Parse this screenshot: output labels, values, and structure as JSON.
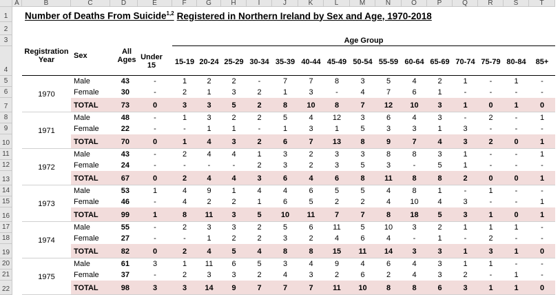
{
  "title": {
    "main": "Number of Deaths From Suicide",
    "superscript": "1,2",
    "rest": "Registered in Northern Ireland by Sex and Age, 1970-2018"
  },
  "column_letters": [
    "A",
    "B",
    "C",
    "D",
    "E",
    "F",
    "G",
    "H",
    "I",
    "J",
    "K",
    "L",
    "M",
    "N",
    "O",
    "P",
    "Q",
    "R",
    "S",
    "T"
  ],
  "row_numbers": [
    1,
    2,
    3,
    4,
    5,
    6,
    7,
    8,
    9,
    10,
    11,
    12,
    13,
    14,
    15,
    16,
    17,
    18,
    19,
    20,
    21,
    22
  ],
  "header": {
    "age_group": "Age Group",
    "registration_year": "Registration Year",
    "sex": "Sex",
    "all_ages": "All Ages",
    "age_bands": [
      "Under 15",
      "15-19",
      "20-24",
      "25-29",
      "30-34",
      "35-39",
      "40-44",
      "45-49",
      "50-54",
      "55-59",
      "60-64",
      "65-69",
      "70-74",
      "75-79",
      "80-84",
      "85+"
    ]
  },
  "groups": [
    {
      "year": "1970",
      "rows": [
        {
          "sex": "Male",
          "all_ages": 43,
          "values": [
            "-",
            1,
            2,
            2,
            "-",
            7,
            7,
            8,
            3,
            5,
            4,
            2,
            1,
            "-",
            1,
            "-"
          ]
        },
        {
          "sex": "Female",
          "all_ages": 30,
          "values": [
            "-",
            2,
            1,
            3,
            2,
            1,
            3,
            "-",
            4,
            7,
            6,
            1,
            "-",
            "-",
            "-",
            "-"
          ]
        },
        {
          "sex": "TOTAL",
          "all_ages": 73,
          "values": [
            0,
            3,
            3,
            5,
            2,
            8,
            10,
            8,
            7,
            12,
            10,
            3,
            1,
            0,
            1,
            0
          ]
        }
      ]
    },
    {
      "year": "1971",
      "rows": [
        {
          "sex": "Male",
          "all_ages": 48,
          "values": [
            "-",
            1,
            3,
            2,
            2,
            5,
            4,
            12,
            3,
            6,
            4,
            3,
            "-",
            2,
            "-",
            1
          ]
        },
        {
          "sex": "Female",
          "all_ages": 22,
          "values": [
            "-",
            "-",
            1,
            1,
            "-",
            1,
            3,
            1,
            5,
            3,
            3,
            1,
            3,
            "-",
            "-",
            "-"
          ]
        },
        {
          "sex": "TOTAL",
          "all_ages": 70,
          "values": [
            0,
            1,
            4,
            3,
            2,
            6,
            7,
            13,
            8,
            9,
            7,
            4,
            3,
            2,
            0,
            1
          ]
        }
      ]
    },
    {
      "year": "1972",
      "rows": [
        {
          "sex": "Male",
          "all_ages": 43,
          "values": [
            "-",
            2,
            4,
            4,
            1,
            3,
            2,
            3,
            3,
            8,
            8,
            3,
            1,
            "-",
            "-",
            1
          ]
        },
        {
          "sex": "Female",
          "all_ages": 24,
          "values": [
            "-",
            "-",
            "-",
            "-",
            2,
            3,
            2,
            3,
            5,
            3,
            "-",
            5,
            1,
            "-",
            "-",
            "-"
          ]
        },
        {
          "sex": "TOTAL",
          "all_ages": 67,
          "values": [
            0,
            2,
            4,
            4,
            3,
            6,
            4,
            6,
            8,
            11,
            8,
            8,
            2,
            0,
            0,
            1
          ]
        }
      ]
    },
    {
      "year": "1973",
      "rows": [
        {
          "sex": "Male",
          "all_ages": 53,
          "values": [
            1,
            4,
            9,
            1,
            4,
            4,
            6,
            5,
            5,
            4,
            8,
            1,
            "-",
            1,
            "-",
            "-"
          ]
        },
        {
          "sex": "Female",
          "all_ages": 46,
          "values": [
            "-",
            4,
            2,
            2,
            1,
            6,
            5,
            2,
            2,
            4,
            10,
            4,
            3,
            "-",
            "-",
            1
          ]
        },
        {
          "sex": "TOTAL",
          "all_ages": 99,
          "values": [
            1,
            8,
            11,
            3,
            5,
            10,
            11,
            7,
            7,
            8,
            18,
            5,
            3,
            1,
            0,
            1
          ]
        }
      ]
    },
    {
      "year": "1974",
      "rows": [
        {
          "sex": "Male",
          "all_ages": 55,
          "values": [
            "-",
            2,
            3,
            3,
            2,
            5,
            6,
            11,
            5,
            10,
            3,
            2,
            1,
            1,
            1,
            "-"
          ]
        },
        {
          "sex": "Female",
          "all_ages": 27,
          "values": [
            "-",
            "-",
            1,
            2,
            2,
            3,
            2,
            4,
            6,
            4,
            "-",
            1,
            "-",
            2,
            "-",
            "-"
          ]
        },
        {
          "sex": "TOTAL",
          "all_ages": 82,
          "values": [
            0,
            2,
            4,
            5,
            4,
            8,
            8,
            15,
            11,
            14,
            3,
            3,
            1,
            3,
            1,
            0
          ]
        }
      ]
    },
    {
      "year": "1975",
      "rows": [
        {
          "sex": "Male",
          "all_ages": 61,
          "values": [
            3,
            1,
            11,
            6,
            5,
            3,
            4,
            9,
            4,
            6,
            4,
            3,
            1,
            1,
            "-",
            "-"
          ]
        },
        {
          "sex": "Female",
          "all_ages": 37,
          "values": [
            "-",
            2,
            3,
            3,
            2,
            4,
            3,
            2,
            6,
            2,
            4,
            3,
            2,
            "-",
            1,
            "-"
          ]
        },
        {
          "sex": "TOTAL",
          "all_ages": 98,
          "values": [
            3,
            3,
            14,
            9,
            7,
            7,
            7,
            11,
            10,
            8,
            8,
            6,
            3,
            1,
            1,
            0
          ]
        }
      ]
    }
  ]
}
